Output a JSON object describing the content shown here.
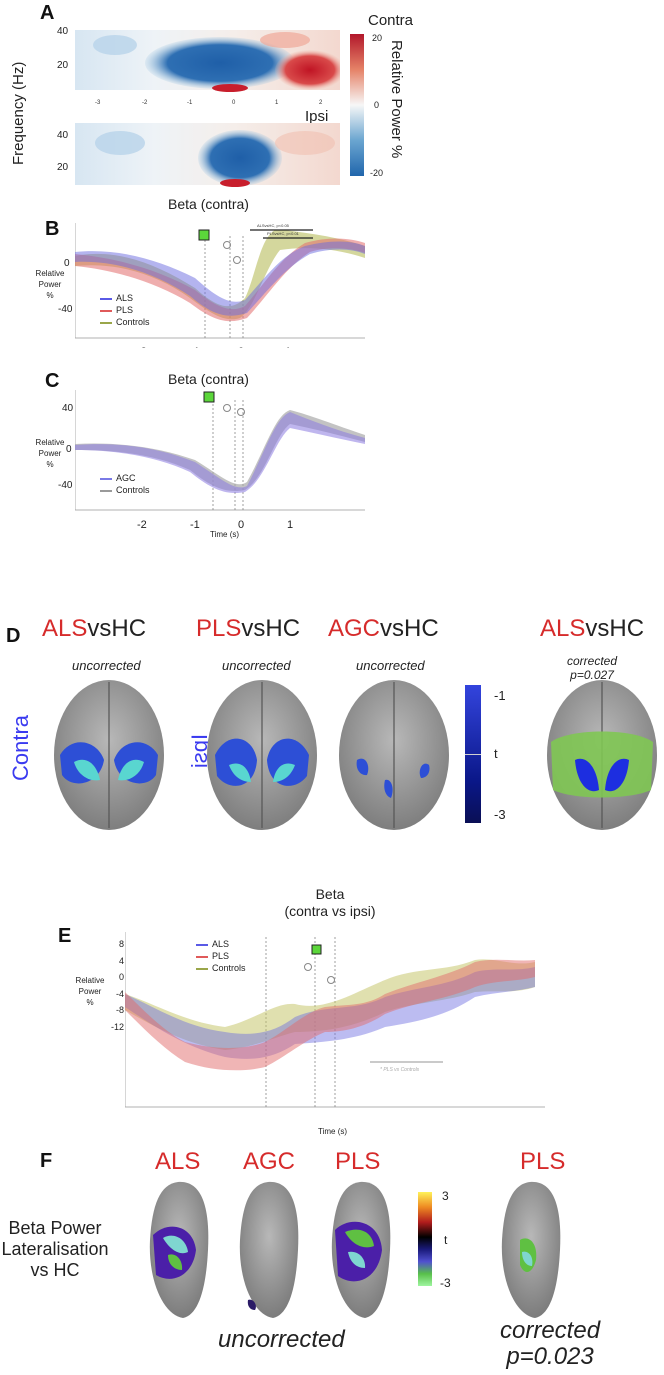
{
  "panels": {
    "A": {
      "letter": "A",
      "contra_label": "Contra",
      "ipsi_label": "Ipsi",
      "ylabel": "Frequency (Hz)",
      "yticks_top": [
        "40",
        "20"
      ],
      "yticks_bottom": [
        "40",
        "20"
      ],
      "xticks": [
        "-3",
        "-2",
        "-1",
        "0",
        "1",
        "2"
      ],
      "colorbar": {
        "label": "Relative Power %",
        "ticks": [
          "20",
          "0",
          "-20"
        ],
        "low_color": "#2b6bb0",
        "high_color": "#c81e2c"
      }
    },
    "B": {
      "letter": "B",
      "title": "Beta (contra)",
      "ylabel_lines": [
        "Relative",
        "Power",
        "%"
      ],
      "yticks": [
        "0",
        "-40"
      ],
      "xticks": [
        "-2",
        "-1",
        "0",
        "1"
      ],
      "sig_labels": [
        "ALSvsHC, p<0.05",
        "PLSvsHC, p<0.01"
      ],
      "legend": [
        {
          "name": "ALS",
          "color": "#5a5ae6"
        },
        {
          "name": "PLS",
          "color": "#e05a5a"
        },
        {
          "name": "Controls",
          "color": "#9aa64a"
        }
      ]
    },
    "C": {
      "letter": "C",
      "title": "Beta (contra)",
      "ylabel_lines": [
        "Relative",
        "Power",
        "%"
      ],
      "yticks": [
        "40",
        "0",
        "-40"
      ],
      "xticks": [
        "-2",
        "-1",
        "0",
        "1"
      ],
      "xlabel": "Time (s)",
      "legend": [
        {
          "name": "AGC",
          "color": "#7a7ae6"
        },
        {
          "name": "Controls",
          "color": "#9a9a9a"
        }
      ]
    },
    "D": {
      "letter": "D",
      "comparisons": [
        {
          "group": "ALS",
          "vs": "vsHC",
          "note": "uncorrected",
          "note2": ""
        },
        {
          "group": "PLS",
          "vs": "vsHC",
          "note": "uncorrected",
          "note2": ""
        },
        {
          "group": "AGC",
          "vs": "vsHC",
          "note": "uncorrected",
          "note2": ""
        },
        {
          "group": "ALS",
          "vs": "vsHC",
          "note": "corrected",
          "note2": "p=0.027"
        }
      ],
      "contra_label": "Contra",
      "ipsi_label": "Ipsi",
      "colorbar": {
        "ticks": [
          "-1",
          "t",
          "-3"
        ]
      }
    },
    "E": {
      "letter": "E",
      "title_lines": [
        "Beta",
        "(contra vs ipsi)"
      ],
      "ylabel_lines": [
        "Relative",
        "Power",
        "%"
      ],
      "yticks": [
        "8",
        "4",
        "0",
        "-4",
        "-8",
        "-12"
      ],
      "xticks": [
        "-2",
        "-1",
        "0",
        "1"
      ],
      "xlabel": "Time (s)",
      "sig_label": "* PLS vs Controls",
      "legend": [
        {
          "name": "ALS",
          "color": "#5a5ae6"
        },
        {
          "name": "PLS",
          "color": "#e05a5a"
        },
        {
          "name": "Controls",
          "color": "#9aa64a"
        }
      ]
    },
    "F": {
      "letter": "F",
      "row_label_lines": [
        "Beta Power",
        "Lateralisation",
        "vs HC"
      ],
      "groups": [
        "ALS",
        "AGC",
        "PLS"
      ],
      "uncorrected": "uncorrected",
      "corrected_group": "PLS",
      "corrected_lines": [
        "corrected",
        "p=0.023"
      ],
      "colorbar": {
        "ticks": [
          "3",
          "t",
          "-3"
        ]
      }
    }
  }
}
